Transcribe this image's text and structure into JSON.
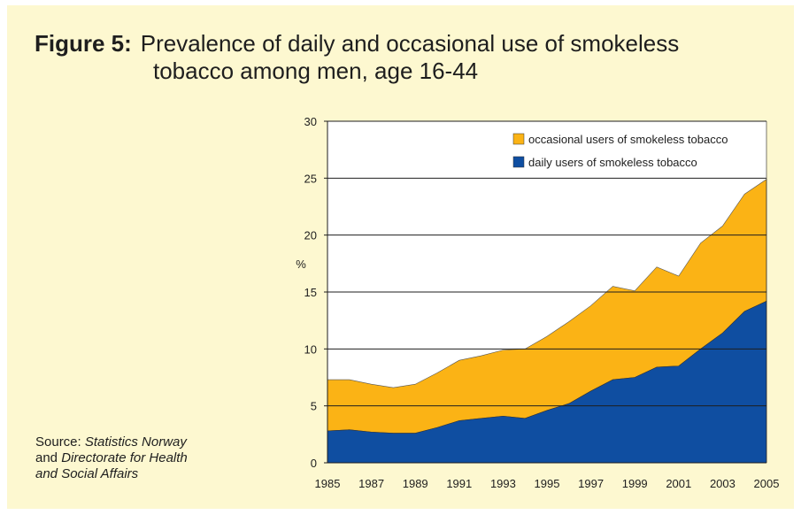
{
  "figure": {
    "label": "Figure 5:",
    "title_line1": "Prevalence of daily and occasional use of smokeless",
    "title_line2": "tobacco among men, age 16-44"
  },
  "source": {
    "prefix": "Source: ",
    "org1": "Statistics Norway",
    "and": "and",
    "org2_line1": "Directorate for Health",
    "org2_line2": "and Social Affairs"
  },
  "colors": {
    "background": "#fdf8d0",
    "occasional": "#fbb315",
    "daily": "#0f4ea1",
    "plot_bg": "#ffffff",
    "gridline": "#1e1e1e"
  },
  "chart_data": {
    "type": "area",
    "stacked": true,
    "x": [
      1985,
      1986,
      1987,
      1988,
      1989,
      1990,
      1991,
      1992,
      1993,
      1994,
      1995,
      1996,
      1997,
      1998,
      1999,
      2000,
      2001,
      2002,
      2003,
      2004,
      2005
    ],
    "x_tick_labels": [
      "1985",
      "1987",
      "1989",
      "1991",
      "1993",
      "1995",
      "1997",
      "1999",
      "2001",
      "2003",
      "2005"
    ],
    "ylabel": "%",
    "ylim": [
      0,
      30
    ],
    "y_ticks": [
      0,
      5,
      10,
      15,
      20,
      25,
      30
    ],
    "grid": "horizontal",
    "legend_position": "top-right",
    "series": [
      {
        "name": "daily users of smokeless tobacco",
        "values": [
          2.8,
          2.9,
          2.7,
          2.6,
          2.6,
          3.1,
          3.7,
          3.9,
          4.1,
          3.9,
          4.6,
          5.2,
          6.3,
          7.3,
          7.5,
          8.4,
          8.5,
          10.0,
          11.4,
          13.3,
          14.2
        ]
      },
      {
        "name": "occasional users of smokeless tobacco",
        "values": [
          4.5,
          4.4,
          4.2,
          4.0,
          4.3,
          4.8,
          5.3,
          5.5,
          5.8,
          6.1,
          6.5,
          7.2,
          7.5,
          8.2,
          7.6,
          8.8,
          7.9,
          9.3,
          9.4,
          10.3,
          10.7
        ]
      }
    ]
  }
}
